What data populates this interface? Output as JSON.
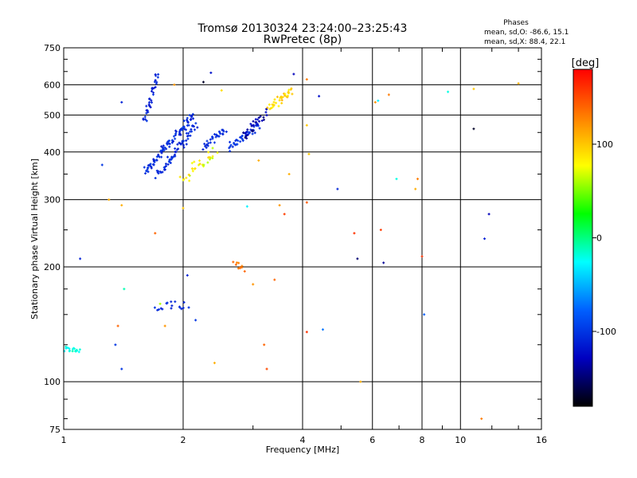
{
  "header": {
    "title": "Tromsø 20130324 23:24:00–23:25:43",
    "subtitle": "RwPretec (8p)"
  },
  "stats": {
    "heading": "Phases",
    "line1": "mean, sd,O:  -86.6, 15.1",
    "line2": "mean, sd,X:  88.4, 22.1"
  },
  "colorbar": {
    "label": "[deg]",
    "range": [
      -180,
      180
    ],
    "ticks": [
      100,
      0,
      -100
    ],
    "colors": [
      "#ff0000",
      "#ff8000",
      "#ffff00",
      "#00ff00",
      "#00ffff",
      "#0060ff",
      "#0000c0",
      "#000000"
    ]
  },
  "chart_data": {
    "type": "scatter",
    "xlabel": "Frequency [MHz]",
    "ylabel": "Stationary phase Virtual Height [km]",
    "xscale": "log",
    "yscale": "log",
    "xlim": [
      1,
      16
    ],
    "ylim": [
      75,
      750
    ],
    "grid": true,
    "xticks": [
      1,
      2,
      4,
      6,
      8,
      10,
      16
    ],
    "xtick_labels": [
      "1",
      "2",
      "4",
      "6",
      "8",
      "10",
      "16"
    ],
    "yticks": [
      75,
      100,
      200,
      300,
      400,
      500,
      600,
      750
    ],
    "ytick_labels": [
      "75",
      "100",
      "200",
      "300",
      "400",
      "500",
      "600",
      "750"
    ],
    "traces": [
      {
        "f_start": 1.6,
        "f_end": 2.12,
        "h_start": 355,
        "h_end": 500,
        "n": 90,
        "phase_min": -120,
        "phase_max": -95,
        "jitter": 0.025
      },
      {
        "f_start": 1.72,
        "f_end": 2.15,
        "h_start": 345,
        "h_end": 470,
        "n": 60,
        "phase_min": -115,
        "phase_max": -100,
        "jitter": 0.03
      },
      {
        "f_start": 1.6,
        "f_end": 1.72,
        "h_start": 480,
        "h_end": 640,
        "n": 35,
        "phase_min": -120,
        "phase_max": -100,
        "jitter": 0.02
      },
      {
        "f_start": 2.25,
        "f_end": 2.55,
        "h_start": 410,
        "h_end": 460,
        "n": 30,
        "phase_min": -115,
        "phase_max": -100,
        "jitter": 0.02
      },
      {
        "f_start": 2.6,
        "f_end": 3.1,
        "h_start": 410,
        "h_end": 470,
        "n": 40,
        "phase_min": -110,
        "phase_max": -95,
        "jitter": 0.025
      },
      {
        "f_start": 2.85,
        "f_end": 3.25,
        "h_start": 440,
        "h_end": 510,
        "n": 30,
        "phase_min": -150,
        "phase_max": -120,
        "jitter": 0.03
      },
      {
        "f_start": 3.3,
        "f_end": 3.75,
        "h_start": 520,
        "h_end": 580,
        "n": 35,
        "phase_min": 80,
        "phase_max": 110,
        "jitter": 0.025
      },
      {
        "f_start": 2.0,
        "f_end": 2.4,
        "h_start": 340,
        "h_end": 400,
        "n": 30,
        "phase_min": 60,
        "phase_max": 100,
        "jitter": 0.04
      },
      {
        "f_start": 1.0,
        "f_end": 1.1,
        "h_start": 122,
        "h_end": 120,
        "n": 18,
        "phase_min": -30,
        "phase_max": -10,
        "jitter": 0.015
      },
      {
        "f_start": 1.7,
        "f_end": 2.05,
        "h_start": 155,
        "h_end": 160,
        "n": 18,
        "phase_min": -115,
        "phase_max": -100,
        "jitter": 0.03
      },
      {
        "f_start": 2.7,
        "f_end": 2.85,
        "h_start": 205,
        "h_end": 198,
        "n": 10,
        "phase_min": 125,
        "phase_max": 140,
        "jitter": 0.02
      }
    ],
    "points": [
      {
        "f": 1.1,
        "h": 210,
        "phase": -110
      },
      {
        "f": 1.25,
        "h": 370,
        "phase": -100
      },
      {
        "f": 1.3,
        "h": 300,
        "phase": 110
      },
      {
        "f": 1.35,
        "h": 125,
        "phase": -100
      },
      {
        "f": 1.37,
        "h": 140,
        "phase": 140
      },
      {
        "f": 1.4,
        "h": 540,
        "phase": -110
      },
      {
        "f": 1.4,
        "h": 290,
        "phase": 110
      },
      {
        "f": 1.42,
        "h": 175,
        "phase": -10
      },
      {
        "f": 1.4,
        "h": 108,
        "phase": -100
      },
      {
        "f": 1.7,
        "h": 245,
        "phase": 140
      },
      {
        "f": 1.75,
        "h": 160,
        "phase": 60
      },
      {
        "f": 1.8,
        "h": 140,
        "phase": 120
      },
      {
        "f": 1.9,
        "h": 600,
        "phase": 120
      },
      {
        "f": 2.0,
        "h": 285,
        "phase": 100
      },
      {
        "f": 2.05,
        "h": 190,
        "phase": -110
      },
      {
        "f": 2.15,
        "h": 145,
        "phase": -100
      },
      {
        "f": 2.25,
        "h": 610,
        "phase": -170
      },
      {
        "f": 2.35,
        "h": 645,
        "phase": -120
      },
      {
        "f": 2.4,
        "h": 112,
        "phase": 110
      },
      {
        "f": 2.5,
        "h": 580,
        "phase": 90
      },
      {
        "f": 2.9,
        "h": 288,
        "phase": -30
      },
      {
        "f": 3.0,
        "h": 180,
        "phase": 120
      },
      {
        "f": 3.1,
        "h": 380,
        "phase": 110
      },
      {
        "f": 3.2,
        "h": 125,
        "phase": 140
      },
      {
        "f": 3.25,
        "h": 108,
        "phase": 150
      },
      {
        "f": 3.4,
        "h": 185,
        "phase": 140
      },
      {
        "f": 3.5,
        "h": 290,
        "phase": 120
      },
      {
        "f": 3.6,
        "h": 275,
        "phase": 155
      },
      {
        "f": 3.7,
        "h": 350,
        "phase": 110
      },
      {
        "f": 3.8,
        "h": 640,
        "phase": -130
      },
      {
        "f": 4.1,
        "h": 620,
        "phase": 130
      },
      {
        "f": 4.1,
        "h": 470,
        "phase": 100
      },
      {
        "f": 4.15,
        "h": 395,
        "phase": 100
      },
      {
        "f": 4.1,
        "h": 295,
        "phase": 145
      },
      {
        "f": 4.1,
        "h": 135,
        "phase": 160
      },
      {
        "f": 4.4,
        "h": 560,
        "phase": -120
      },
      {
        "f": 4.5,
        "h": 137,
        "phase": -70
      },
      {
        "f": 4.9,
        "h": 320,
        "phase": -110
      },
      {
        "f": 5.4,
        "h": 245,
        "phase": 160
      },
      {
        "f": 5.5,
        "h": 210,
        "phase": -150
      },
      {
        "f": 5.6,
        "h": 100,
        "phase": 110
      },
      {
        "f": 6.1,
        "h": 540,
        "phase": 120
      },
      {
        "f": 6.2,
        "h": 545,
        "phase": -30
      },
      {
        "f": 6.3,
        "h": 250,
        "phase": 155
      },
      {
        "f": 6.4,
        "h": 205,
        "phase": -140
      },
      {
        "f": 6.6,
        "h": 565,
        "phase": 130
      },
      {
        "f": 6.9,
        "h": 340,
        "phase": -20
      },
      {
        "f": 7.7,
        "h": 320,
        "phase": 110
      },
      {
        "f": 7.8,
        "h": 340,
        "phase": 130
      },
      {
        "f": 8.0,
        "h": 213,
        "phase": 160
      },
      {
        "f": 8.1,
        "h": 150,
        "phase": -80
      },
      {
        "f": 9.3,
        "h": 575,
        "phase": -20
      },
      {
        "f": 10.8,
        "h": 585,
        "phase": 100
      },
      {
        "f": 10.8,
        "h": 460,
        "phase": -170
      },
      {
        "f": 11.3,
        "h": 80,
        "phase": 130
      },
      {
        "f": 11.5,
        "h": 237,
        "phase": -110
      },
      {
        "f": 11.8,
        "h": 275,
        "phase": -130
      },
      {
        "f": 14.0,
        "h": 605,
        "phase": 110
      }
    ]
  }
}
